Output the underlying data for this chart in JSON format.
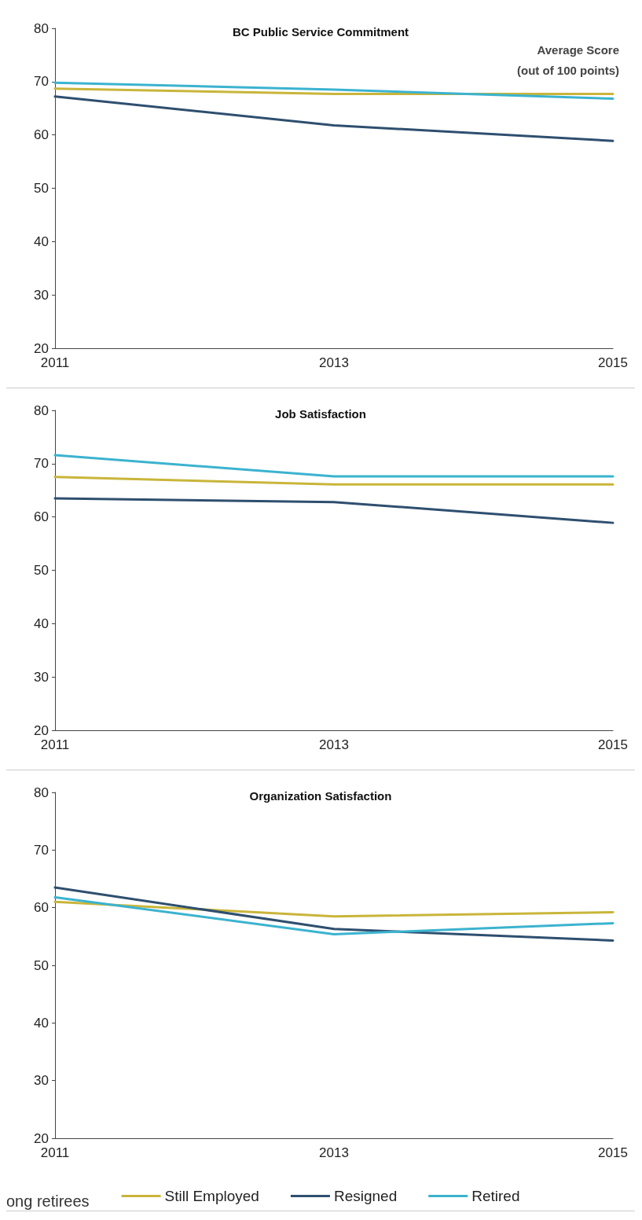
{
  "chart_data": [
    {
      "type": "line",
      "title": "BC Public Service Commitment",
      "annotations": [
        "Average Score",
        "(out of 100 points)"
      ],
      "categories": [
        "2011",
        "2013",
        "2015"
      ],
      "ylim": [
        20,
        80
      ],
      "yticks": [
        20,
        30,
        40,
        50,
        60,
        70,
        80
      ],
      "grid": false,
      "legend": false,
      "marker": "none",
      "series": [
        {
          "color": "#c9b53a",
          "values": [
            68.7,
            67.7,
            67.7
          ]
        },
        {
          "color": "#2e4f6f",
          "values": [
            67.2,
            61.8,
            58.9
          ]
        },
        {
          "color": "#3bb3cf",
          "values": [
            69.8,
            68.5,
            66.8
          ]
        }
      ]
    },
    {
      "type": "line",
      "title": "Job Satisfaction",
      "categories": [
        "2011",
        "2013",
        "2015"
      ],
      "ylim": [
        20,
        80
      ],
      "yticks": [
        20,
        30,
        40,
        50,
        60,
        70,
        80
      ],
      "grid": false,
      "legend": false,
      "marker": "none",
      "series": [
        {
          "color": "#c9b53a",
          "values": [
            67.5,
            66.1,
            66.1
          ]
        },
        {
          "color": "#2e4f6f",
          "values": [
            63.5,
            62.8,
            58.9
          ]
        },
        {
          "color": "#3bb3cf",
          "values": [
            71.6,
            67.6,
            67.6
          ]
        }
      ]
    },
    {
      "type": "line",
      "title": "Organization Satisfaction",
      "annotations": [
        "ong retirees"
      ],
      "categories": [
        "2011",
        "2013",
        "2015"
      ],
      "ylim": [
        20,
        80
      ],
      "yticks": [
        20,
        30,
        40,
        50,
        60,
        70,
        80
      ],
      "grid": false,
      "legend": "bottom",
      "marker": "none",
      "series": [
        {
          "name": "Still Employed",
          "color": "#c9b53a",
          "values": [
            61.0,
            58.5,
            59.2
          ]
        },
        {
          "name": "Resigned",
          "color": "#2e4f6f",
          "values": [
            63.5,
            56.3,
            54.3
          ]
        },
        {
          "name": "Retired",
          "color": "#3bb3cf",
          "values": [
            61.8,
            55.4,
            57.3
          ]
        }
      ]
    }
  ]
}
